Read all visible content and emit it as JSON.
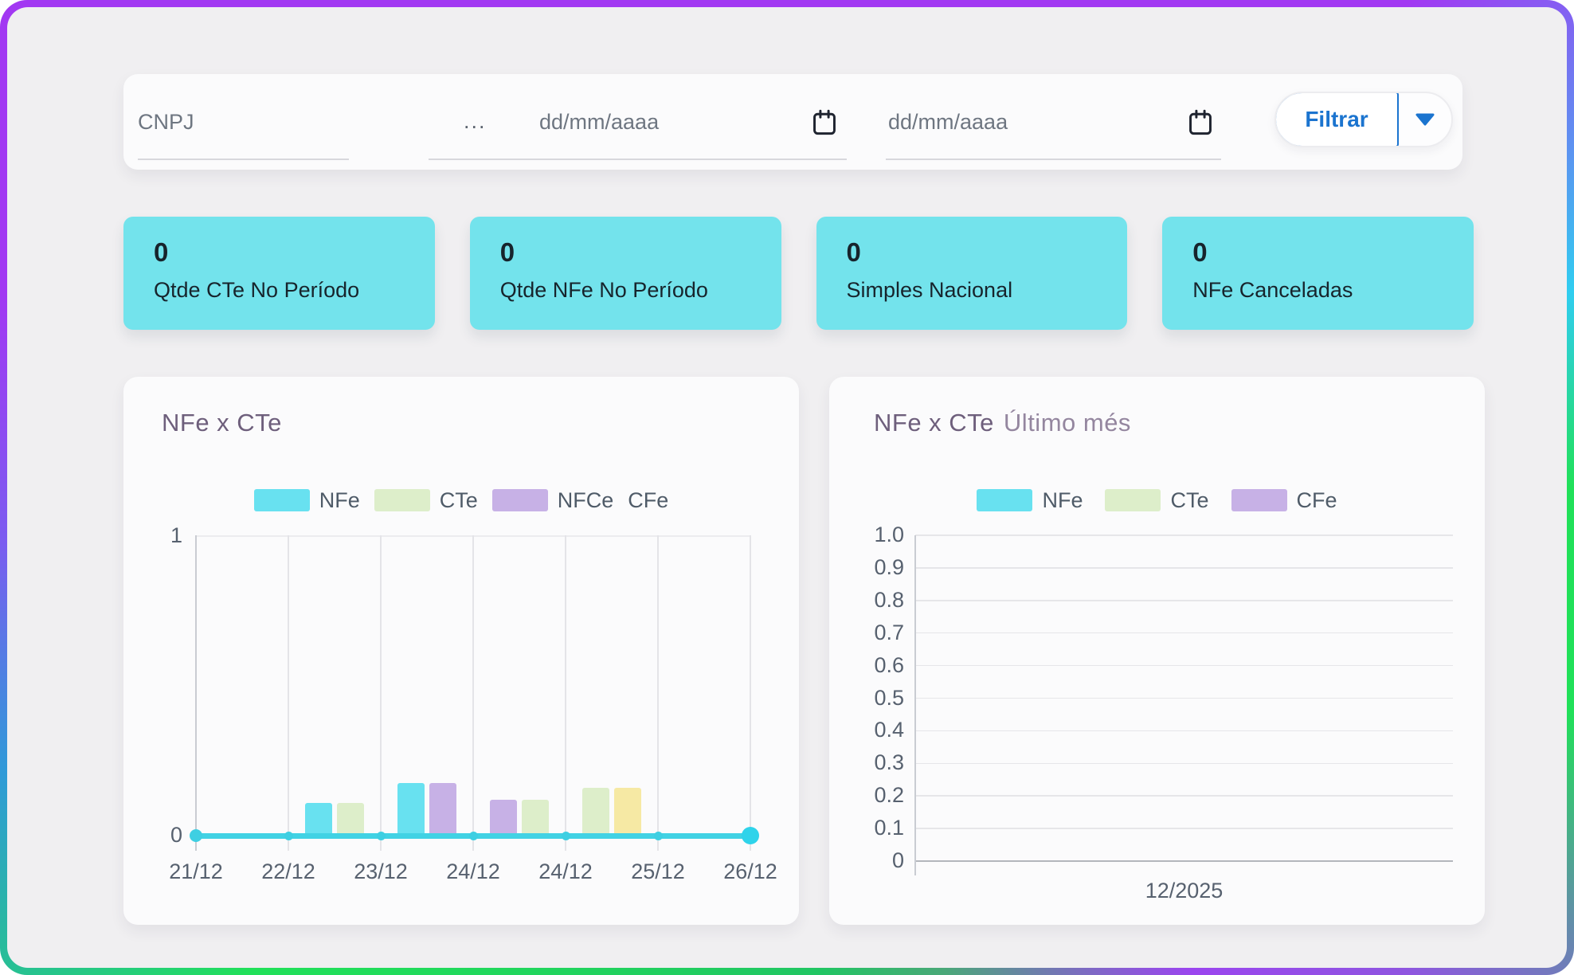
{
  "page": {
    "background": "#f0eff1",
    "border_gradient": [
      "#a238f2",
      "#30cdf0",
      "#21e059"
    ]
  },
  "filter_bar": {
    "cnpj": {
      "placeholder": "CNPJ"
    },
    "separator": "...",
    "date_from": {
      "placeholder": "dd/mm/aaaa"
    },
    "date_to": {
      "placeholder": "dd/mm/aaaa"
    },
    "filter_button": {
      "label": "Filtrar"
    },
    "accent_color": "#1b74cf"
  },
  "stat_cards": [
    {
      "value": "0",
      "label": "Qtde CTe No Período"
    },
    {
      "value": "0",
      "label": "Qtde NFe No Período"
    },
    {
      "value": "0",
      "label": "Simples Nacional"
    },
    {
      "value": "0",
      "label": "NFe Canceladas"
    }
  ],
  "stat_card_color": "#73e3ec",
  "chart_data": [
    {
      "type": "bar",
      "title": "NFe x CTe",
      "legend": [
        {
          "label": "NFe",
          "color": "#68e1f0"
        },
        {
          "label": "CTe",
          "color": "#ddeeca"
        },
        {
          "label": "NFCe",
          "color": "#c7b1e6"
        },
        {
          "label": "CFe",
          "color": null
        }
      ],
      "x_categories": [
        "21/12",
        "22/12",
        "23/12",
        "24/12",
        "24/12",
        "25/12",
        "26/12"
      ],
      "y_ticks": [
        "1",
        "0"
      ],
      "ylim": [
        0,
        1
      ],
      "grid": "vertical",
      "legend_position": "top",
      "baseline": {
        "value": 0,
        "color": "#41d2e4"
      },
      "bars": [
        {
          "interval": 1,
          "between": [
            "22/12",
            "23/12"
          ],
          "series": "NFe",
          "color": "#68e1f0",
          "value": 0.11
        },
        {
          "interval": 1,
          "between": [
            "22/12",
            "23/12"
          ],
          "series": "CTe",
          "color": "#ddeeca",
          "value": 0.11
        },
        {
          "interval": 2,
          "between": [
            "23/12",
            "24/12"
          ],
          "series": "NFe",
          "color": "#68e1f0",
          "value": 0.175
        },
        {
          "interval": 2,
          "between": [
            "23/12",
            "24/12"
          ],
          "series": "NFCe",
          "color": "#c7b1e6",
          "value": 0.175
        },
        {
          "interval": 3,
          "between": [
            "24/12",
            "24/12"
          ],
          "series": "NFCe",
          "color": "#c7b1e6",
          "value": 0.12
        },
        {
          "interval": 3,
          "between": [
            "24/12",
            "24/12"
          ],
          "series": "CTe",
          "color": "#ddeeca",
          "value": 0.12
        },
        {
          "interval": 4,
          "between": [
            "24/12",
            "25/12"
          ],
          "series": "CTe",
          "color": "#ddeeca",
          "value": 0.16
        },
        {
          "interval": 4,
          "between": [
            "24/12",
            "25/12"
          ],
          "series": "CFe",
          "color": "#f6e9a4",
          "value": 0.16
        }
      ]
    },
    {
      "type": "bar",
      "title": "NFe x CTe",
      "subtitle": "Último més",
      "legend": [
        {
          "label": "NFe",
          "color": "#68e1f0"
        },
        {
          "label": "CTe",
          "color": "#ddeeca"
        },
        {
          "label": "CFe",
          "color": "#c7b1e6"
        }
      ],
      "x_categories": [
        "12/2025"
      ],
      "y_ticks": [
        "1.0",
        "0.9",
        "0.8",
        "0.7",
        "0.6",
        "0.5",
        "0.4",
        "0.3",
        "0.2",
        "0.1",
        "0"
      ],
      "ylim": [
        0,
        1
      ],
      "grid": "horizontal",
      "legend_position": "top",
      "bars": []
    }
  ]
}
